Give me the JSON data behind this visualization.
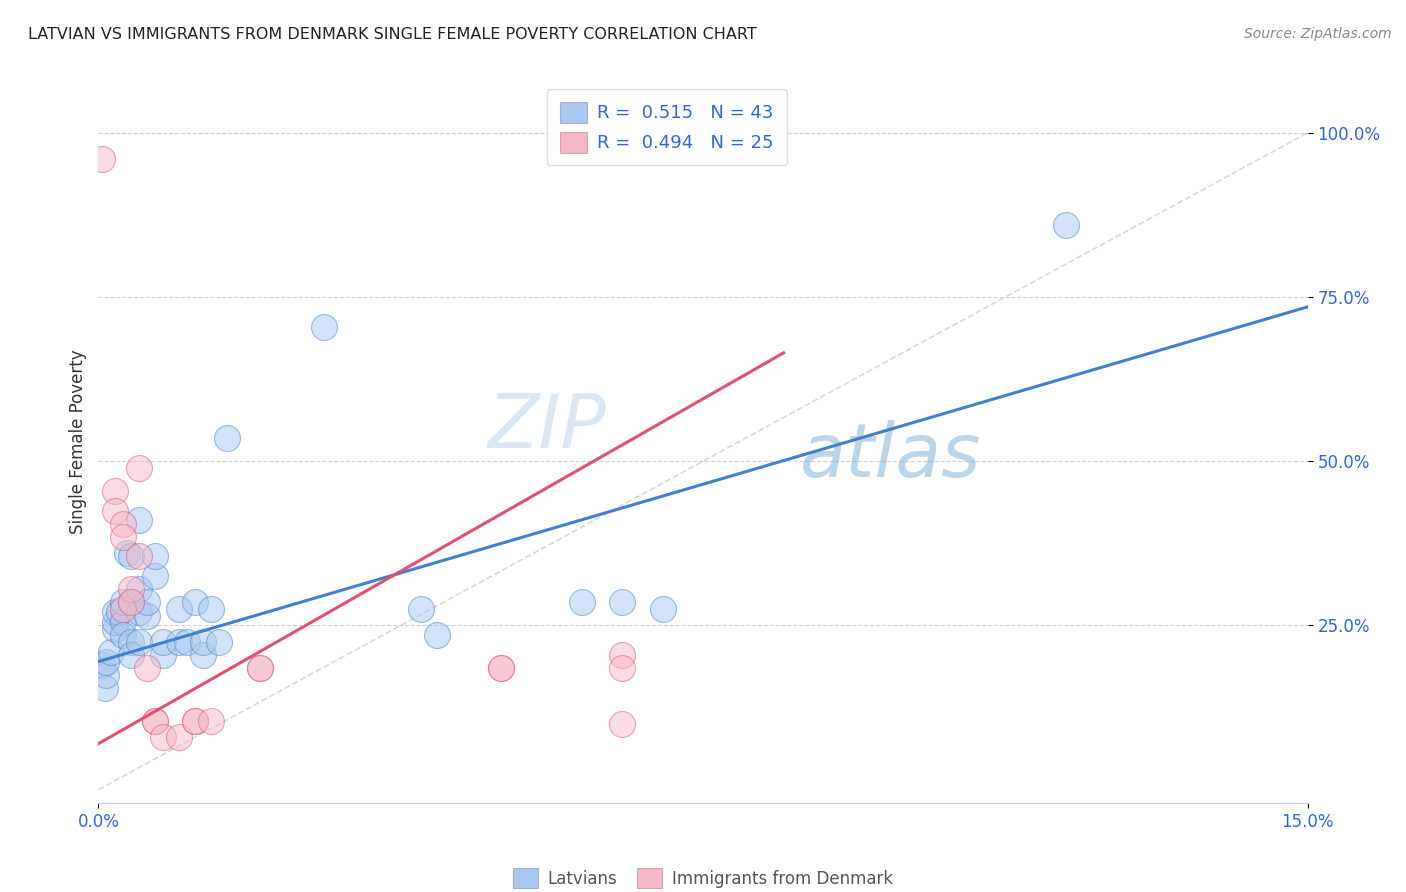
{
  "title": "LATVIAN VS IMMIGRANTS FROM DENMARK SINGLE FEMALE POVERTY CORRELATION CHART",
  "source": "Source: ZipAtlas.com",
  "xlabel_label": "Latvians",
  "xlabel_label2": "Immigrants from Denmark",
  "ylabel": "Single Female Poverty",
  "watermark_zip": "ZIP",
  "watermark_atlas": "atlas",
  "xlim": [
    0.0,
    0.15
  ],
  "ylim": [
    -0.02,
    1.08
  ],
  "ytick_positions": [
    0.25,
    0.5,
    0.75,
    1.0
  ],
  "ytick_labels": [
    "25.0%",
    "50.0%",
    "75.0%",
    "100.0%"
  ],
  "blue_R": "0.515",
  "blue_N": "43",
  "pink_R": "0.494",
  "pink_N": "25",
  "blue_color": "#A8C8F0",
  "pink_color": "#F5B8C8",
  "line_blue": "#4080CC",
  "line_pink": "#E05070",
  "line_diag": "#C8C8D0",
  "blue_points": [
    [
      0.0005,
      0.19
    ],
    [
      0.0008,
      0.155
    ],
    [
      0.001,
      0.175
    ],
    [
      0.001,
      0.195
    ],
    [
      0.0015,
      0.21
    ],
    [
      0.002,
      0.245
    ],
    [
      0.002,
      0.255
    ],
    [
      0.002,
      0.27
    ],
    [
      0.0025,
      0.27
    ],
    [
      0.003,
      0.255
    ],
    [
      0.003,
      0.285
    ],
    [
      0.003,
      0.235
    ],
    [
      0.0035,
      0.36
    ],
    [
      0.004,
      0.225
    ],
    [
      0.004,
      0.205
    ],
    [
      0.004,
      0.285
    ],
    [
      0.004,
      0.355
    ],
    [
      0.005,
      0.27
    ],
    [
      0.005,
      0.305
    ],
    [
      0.005,
      0.41
    ],
    [
      0.005,
      0.225
    ],
    [
      0.006,
      0.265
    ],
    [
      0.006,
      0.285
    ],
    [
      0.007,
      0.325
    ],
    [
      0.007,
      0.355
    ],
    [
      0.008,
      0.205
    ],
    [
      0.008,
      0.225
    ],
    [
      0.01,
      0.275
    ],
    [
      0.01,
      0.225
    ],
    [
      0.011,
      0.225
    ],
    [
      0.012,
      0.285
    ],
    [
      0.013,
      0.205
    ],
    [
      0.013,
      0.225
    ],
    [
      0.014,
      0.275
    ],
    [
      0.015,
      0.225
    ],
    [
      0.016,
      0.535
    ],
    [
      0.028,
      0.705
    ],
    [
      0.04,
      0.275
    ],
    [
      0.042,
      0.235
    ],
    [
      0.06,
      0.285
    ],
    [
      0.065,
      0.285
    ],
    [
      0.07,
      0.275
    ],
    [
      0.12,
      0.86
    ]
  ],
  "pink_points": [
    [
      0.0005,
      0.96
    ],
    [
      0.002,
      0.455
    ],
    [
      0.002,
      0.425
    ],
    [
      0.003,
      0.405
    ],
    [
      0.003,
      0.385
    ],
    [
      0.003,
      0.275
    ],
    [
      0.004,
      0.305
    ],
    [
      0.004,
      0.285
    ],
    [
      0.005,
      0.355
    ],
    [
      0.005,
      0.49
    ],
    [
      0.006,
      0.185
    ],
    [
      0.007,
      0.105
    ],
    [
      0.007,
      0.105
    ],
    [
      0.008,
      0.08
    ],
    [
      0.01,
      0.08
    ],
    [
      0.012,
      0.105
    ],
    [
      0.012,
      0.105
    ],
    [
      0.014,
      0.105
    ],
    [
      0.02,
      0.185
    ],
    [
      0.02,
      0.185
    ],
    [
      0.05,
      0.185
    ],
    [
      0.05,
      0.185
    ],
    [
      0.065,
      0.205
    ],
    [
      0.065,
      0.185
    ],
    [
      0.065,
      0.1
    ]
  ],
  "blue_line_x": [
    0.0,
    0.15
  ],
  "blue_line_y": [
    0.195,
    0.735
  ],
  "pink_line_x": [
    0.0,
    0.085
  ],
  "pink_line_y": [
    0.07,
    0.665
  ],
  "diag_line_x": [
    0.0,
    0.15
  ],
  "diag_line_y": [
    0.0,
    1.0
  ]
}
